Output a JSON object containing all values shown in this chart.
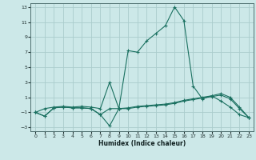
{
  "xlabel": "Humidex (Indice chaleur)",
  "xlim": [
    -0.5,
    23.5
  ],
  "ylim": [
    -3.5,
    13.5
  ],
  "yticks": [
    -3,
    -1,
    1,
    3,
    5,
    7,
    9,
    11,
    13
  ],
  "xticks": [
    0,
    1,
    2,
    3,
    4,
    5,
    6,
    7,
    8,
    9,
    10,
    11,
    12,
    13,
    14,
    15,
    16,
    17,
    18,
    19,
    20,
    21,
    22,
    23
  ],
  "bg_color": "#cce8e8",
  "grid_color": "#aacccc",
  "line_color": "#1a7060",
  "line1_x": [
    0,
    1,
    2,
    3,
    4,
    5,
    6,
    7,
    8,
    9,
    10,
    11,
    12,
    13,
    14,
    15,
    16,
    17,
    18,
    19,
    20,
    21,
    22,
    23
  ],
  "line1_y": [
    -1,
    -0.5,
    -0.3,
    -0.2,
    -0.3,
    -0.2,
    -0.3,
    -0.5,
    3.0,
    -0.5,
    7.2,
    7.0,
    8.5,
    9.5,
    10.5,
    13.0,
    11.2,
    2.5,
    0.8,
    1.2,
    0.5,
    -0.3,
    -1.3,
    -1.7
  ],
  "line2_x": [
    0,
    1,
    2,
    3,
    4,
    5,
    6,
    7,
    8,
    9,
    10,
    11,
    12,
    13,
    14,
    15,
    16,
    17,
    18,
    19,
    20,
    21,
    22,
    23
  ],
  "line2_y": [
    -1,
    -1.5,
    -0.4,
    -0.3,
    -0.4,
    -0.4,
    -0.5,
    -1.3,
    -2.8,
    -0.5,
    -0.5,
    -0.3,
    -0.2,
    -0.1,
    0.0,
    0.2,
    0.5,
    0.7,
    0.9,
    1.1,
    1.3,
    0.8,
    -0.5,
    -1.7
  ],
  "line3_x": [
    0,
    1,
    2,
    3,
    4,
    5,
    6,
    7,
    8,
    9,
    10,
    11,
    12,
    13,
    14,
    15,
    16,
    17,
    18,
    19,
    20,
    21,
    22,
    23
  ],
  "line3_y": [
    -1,
    -1.5,
    -0.4,
    -0.3,
    -0.4,
    -0.4,
    -0.5,
    -1.3,
    -0.5,
    -0.5,
    -0.4,
    -0.2,
    -0.1,
    0.0,
    0.1,
    0.3,
    0.6,
    0.8,
    1.0,
    1.2,
    1.5,
    1.0,
    -0.3,
    -1.7
  ]
}
